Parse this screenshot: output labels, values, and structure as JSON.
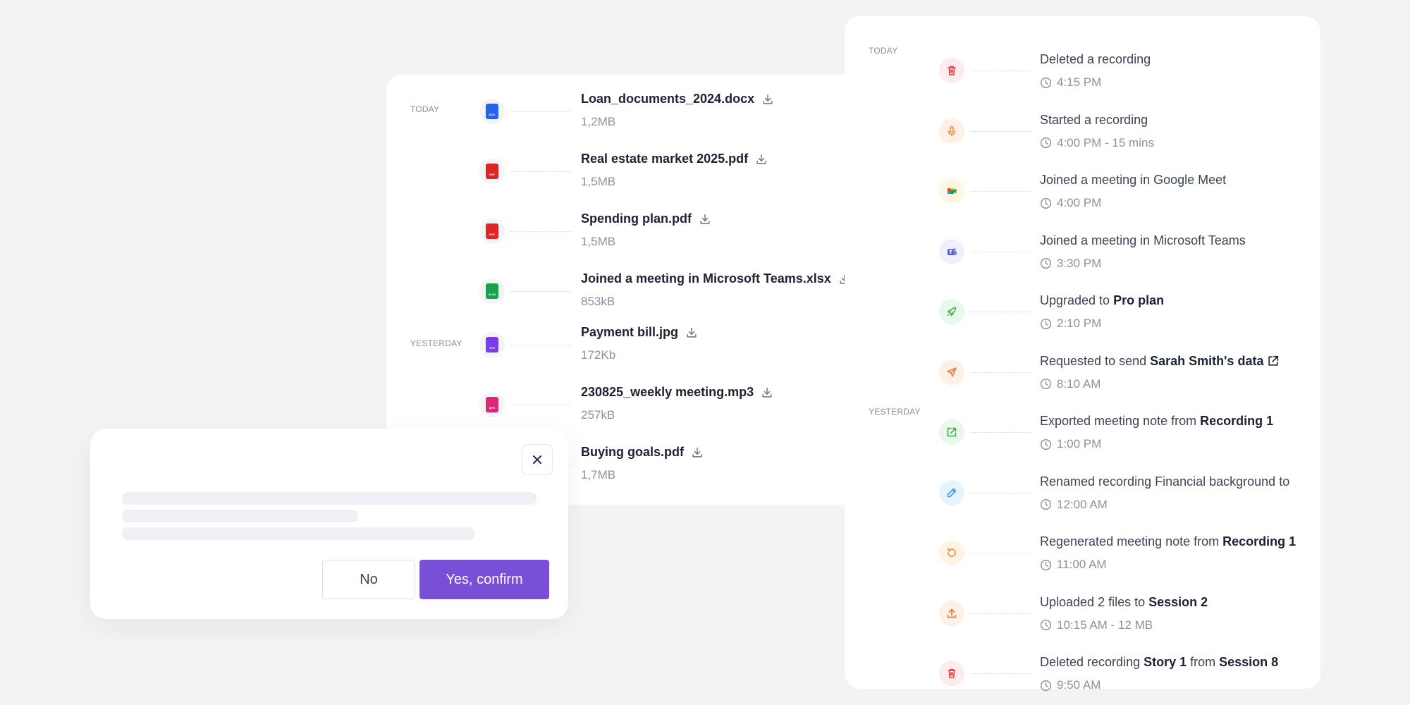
{
  "files": {
    "groups": {
      "today": "TODAY",
      "yesterday": "YESTERDAY"
    },
    "items": [
      {
        "name": "Loan_documents_2024.docx",
        "size": "1,2MB",
        "type": "DOC",
        "color": "#2563eb"
      },
      {
        "name": "Real estate market 2025.pdf",
        "size": "1,5MB",
        "type": "PDF",
        "color": "#dc2626"
      },
      {
        "name": "Spending plan.pdf",
        "size": "1,5MB",
        "type": "PDF",
        "color": "#dc2626"
      },
      {
        "name": "Joined a meeting in Microsoft Teams.xlsx",
        "size": "853kB",
        "type": "XLSX",
        "color": "#16a34a"
      },
      {
        "name": "Payment bill.jpg",
        "size": "172Kb",
        "type": "JPG",
        "color": "#7c3aed"
      },
      {
        "name": "230825_weekly meeting.mp3",
        "size": "257kB",
        "type": "MP3",
        "color": "#db2777"
      },
      {
        "name": "Buying goals.pdf",
        "size": "1,7MB",
        "type": "PDF",
        "color": "#dc2626"
      }
    ]
  },
  "activity": {
    "groups": {
      "today": "TODAY",
      "yesterday": "YESTERDAY"
    },
    "items": [
      {
        "icon": "trash-icon",
        "bg": "#fdecec",
        "color": "#e0393e",
        "text": "Deleted a recording",
        "bold": "",
        "time": "4:15 PM"
      },
      {
        "icon": "microphone-icon",
        "bg": "#fdf1e7",
        "color": "#f08a3e",
        "text": "Started a recording",
        "bold": "",
        "time": "4:00 PM - 15 mins"
      },
      {
        "icon": "google-meet-icon",
        "bg": "#fdf6e3",
        "color": "#2f9e44",
        "text": "Joined a meeting in Google Meet",
        "bold": "",
        "time": "4:00 PM"
      },
      {
        "icon": "microsoft-teams-icon",
        "bg": "#f1effb",
        "color": "#5b5fc7",
        "text": "Joined a meeting in Microsoft Teams",
        "bold": "",
        "time": "3:30 PM"
      },
      {
        "icon": "rocket-icon",
        "bg": "#e9f8ea",
        "color": "#3fae4a",
        "text": "Upgraded to",
        "bold": "Pro plan",
        "time": "2:10 PM"
      },
      {
        "icon": "send-icon",
        "bg": "#fdf0e6",
        "color": "#f07a3a",
        "text": "Requested to send",
        "bold": "Sarah Smith's data",
        "time": "8:10 AM"
      },
      {
        "icon": "export-icon",
        "bg": "#e9f8ea",
        "color": "#3fae4a",
        "text": "Exported meeting note from",
        "bold": "Recording 1",
        "time": "1:00 PM"
      },
      {
        "icon": "pencil-icon",
        "bg": "#e8f4fd",
        "color": "#3a9ae0",
        "text": "Renamed recording Financial background to",
        "bold": "",
        "time": "12:00 AM"
      },
      {
        "icon": "refresh-icon",
        "bg": "#fdf3e6",
        "color": "#f0963a",
        "text": "Regenerated meeting note from",
        "bold": "Recording 1",
        "time": "11:00 AM"
      },
      {
        "icon": "upload-icon",
        "bg": "#fdf0e6",
        "color": "#f07a3a",
        "text": "Uploaded 2 files to",
        "bold": "Session 2",
        "time": "10:15 AM - 12 MB"
      },
      {
        "icon": "trash-icon",
        "bg": "#fdecec",
        "color": "#e0393e",
        "text": "Deleted recording",
        "bold": "Story 1",
        "mid": "from",
        "bold2": "Session 8",
        "time": "9:50 AM"
      }
    ]
  },
  "dialog": {
    "no_label": "No",
    "yes_label": "Yes, confirm"
  }
}
